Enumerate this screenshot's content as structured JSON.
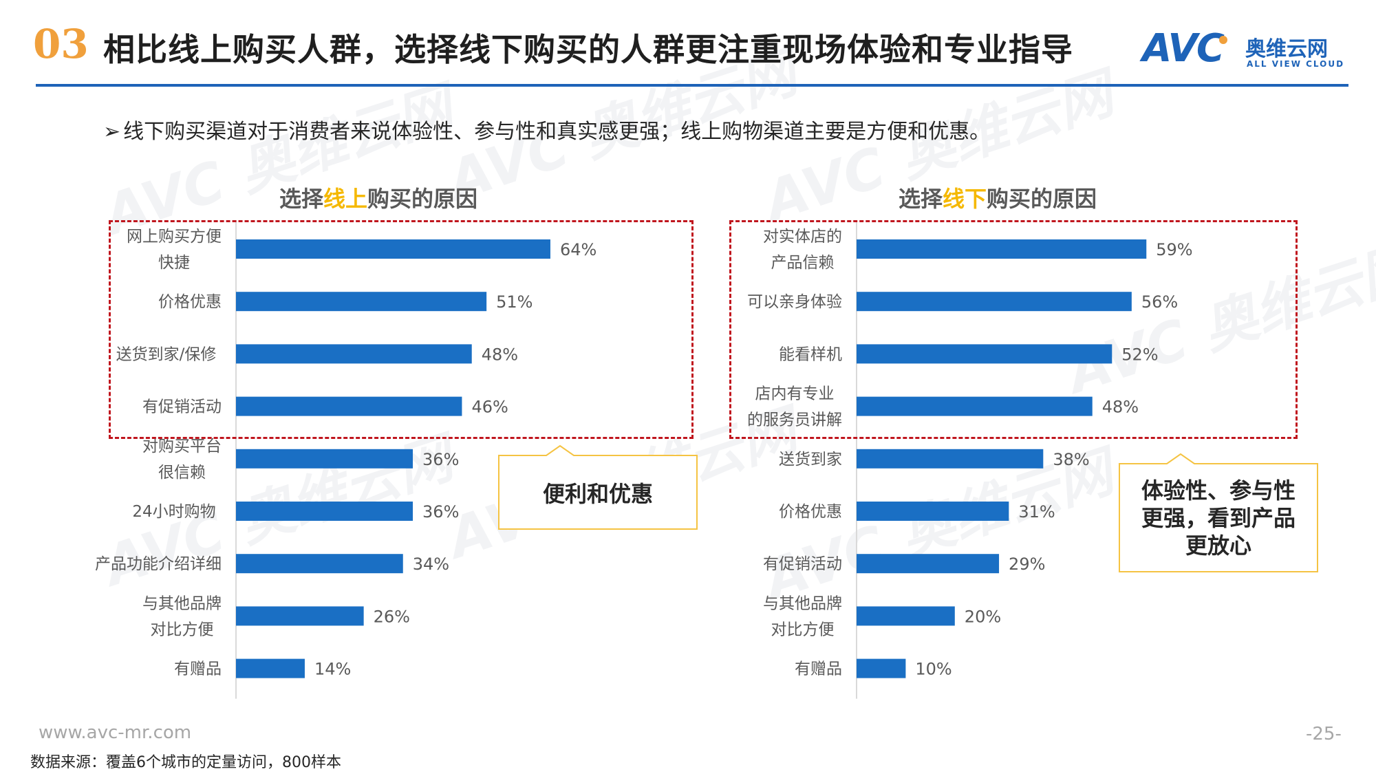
{
  "header": {
    "section_number": "03",
    "title": "相比线上购买人群，选择线下购买的人群更注重现场体验和专业指导"
  },
  "logo": {
    "mark": "AVC",
    "name_cn": "奥维云网",
    "name_en": "ALL VIEW CLOUD"
  },
  "subtitle": {
    "bullet": "➢",
    "text": "线下购买渠道对于消费者来说体验性、参与性和真实感更强；线上购物渠道主要是方便和优惠。"
  },
  "colors": {
    "bar": "#1a6fc4",
    "accent_blue": "#1e63b8",
    "highlight": "#f5b800",
    "dashed_box": "#c0161e",
    "callout_border": "#f5c342"
  },
  "chart_data": [
    {
      "type": "bar",
      "orientation": "horizontal",
      "title_parts": [
        "选择",
        "线上",
        "购买的原因"
      ],
      "categories": [
        [
          "网上购买方便",
          "快捷"
        ],
        [
          "价格优惠"
        ],
        [
          "送货到家/保修"
        ],
        [
          "有促销活动"
        ],
        [
          "对购买平台",
          "很信赖"
        ],
        [
          "24小时购物"
        ],
        [
          "产品功能介绍详细"
        ],
        [
          "与其他品牌",
          "对比方便"
        ],
        [
          "有赠品"
        ]
      ],
      "values": [
        64,
        51,
        48,
        46,
        36,
        36,
        34,
        26,
        14
      ],
      "value_labels": [
        "64%",
        "51%",
        "48%",
        "46%",
        "36%",
        "36%",
        "34%",
        "26%",
        "14%"
      ],
      "xlim": [
        0,
        100
      ],
      "highlighted_top": 4,
      "callout": "便利和优惠"
    },
    {
      "type": "bar",
      "orientation": "horizontal",
      "title_parts": [
        "选择",
        "线下",
        "购买的原因"
      ],
      "categories": [
        [
          "对实体店的",
          "产品信赖"
        ],
        [
          "可以亲身体验"
        ],
        [
          "能看样机"
        ],
        [
          "店内有专业",
          "的服务员讲解"
        ],
        [
          "送货到家"
        ],
        [
          "价格优惠"
        ],
        [
          "有促销活动"
        ],
        [
          "与其他品牌",
          "对比方便"
        ],
        [
          "有赠品"
        ]
      ],
      "values": [
        59,
        56,
        52,
        48,
        38,
        31,
        29,
        20,
        10
      ],
      "value_labels": [
        "59%",
        "56%",
        "52%",
        "48%",
        "38%",
        "31%",
        "29%",
        "20%",
        "10%"
      ],
      "xlim": [
        0,
        100
      ],
      "highlighted_top": 4,
      "callout": "体验性、参与性更强，看到产品更放心"
    }
  ],
  "callouts": {
    "online": "便利和优惠",
    "offline_lines": [
      "体验性、参与性",
      "更强，看到产品",
      "更放心"
    ]
  },
  "footer": {
    "url": "www.avc-mr.com",
    "source": "数据来源：覆盖6个城市的定量访问，800样本",
    "page_number": "-25-"
  }
}
